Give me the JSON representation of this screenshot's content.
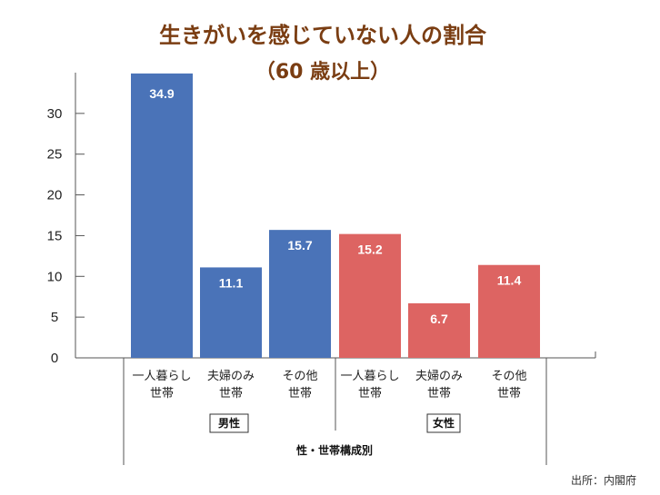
{
  "chart_data": {
    "type": "bar",
    "title": "生きがいを感じていない人の割合",
    "subtitle": "（60 歳以上）",
    "xlabel": "性・世帯構成別",
    "ylabel": "",
    "ylim": [
      0,
      35
    ],
    "yticks": [
      0,
      5,
      10,
      15,
      20,
      25,
      30
    ],
    "grid": false,
    "source": "出所：内閣府",
    "groups": [
      {
        "name": "男性",
        "color": "#4a73b8",
        "categories": [
          [
            "一人暮らし",
            "世帯"
          ],
          [
            "夫婦のみ",
            "世帯"
          ],
          [
            "その他",
            "世帯"
          ]
        ],
        "values": [
          34.9,
          11.1,
          15.7
        ]
      },
      {
        "name": "女性",
        "color": "#dd6462",
        "categories": [
          [
            "一人暮らし",
            "世帯"
          ],
          [
            "夫婦のみ",
            "世帯"
          ],
          [
            "その他",
            "世帯"
          ]
        ],
        "values": [
          15.2,
          6.7,
          11.4
        ]
      }
    ]
  }
}
